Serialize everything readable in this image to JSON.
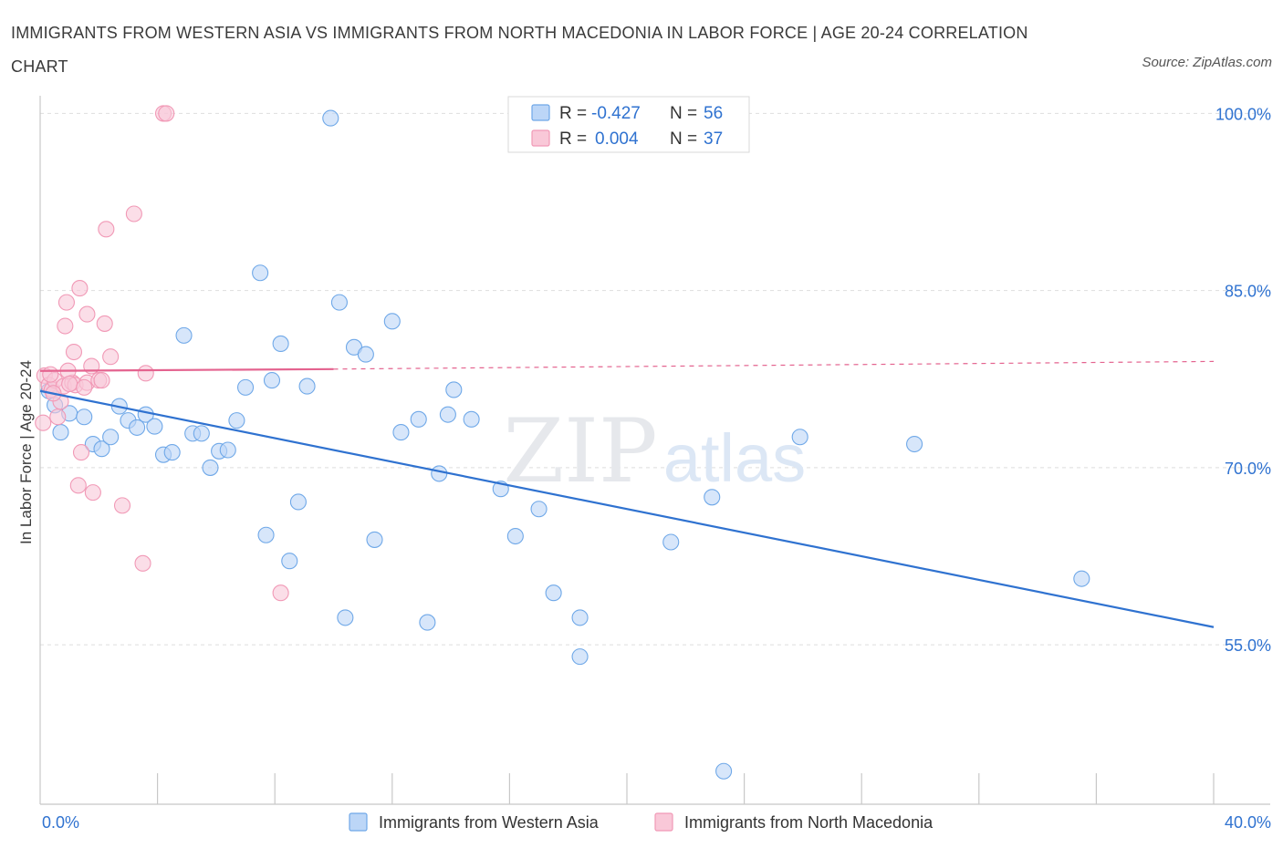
{
  "title": "IMMIGRANTS FROM WESTERN ASIA VS IMMIGRANTS FROM NORTH MACEDONIA IN LABOR FORCE | AGE 20-24 CORRELATION CHART",
  "source": "Source: ZipAtlas.com",
  "watermark": {
    "zip": "ZIP",
    "atlas": "atlas"
  },
  "chart_data": {
    "type": "scatter",
    "title": "IMMIGRANTS FROM WESTERN ASIA VS IMMIGRANTS FROM NORTH MACEDONIA IN LABOR FORCE | AGE 20-24 CORRELATION CHART",
    "xlabel": "",
    "ylabel": "In Labor Force | Age 20-24",
    "xlim": [
      0,
      40
    ],
    "ylim": [
      41.5,
      101.5
    ],
    "x_tick_labels": [
      "0.0%",
      "40.0%"
    ],
    "y_ticks": [
      55,
      70,
      85,
      100
    ],
    "y_tick_labels": [
      "55.0%",
      "70.0%",
      "85.0%",
      "100.0%"
    ],
    "grid": true,
    "legend_position": "bottom",
    "stats": [
      {
        "r_label": "R =",
        "r_value": "-0.427",
        "n_label": "N =",
        "n_value": "56"
      },
      {
        "r_label": "R =",
        "r_value": "0.004",
        "n_label": "N =",
        "n_value": "37"
      }
    ],
    "series": [
      {
        "name": "Immigrants from Western Asia",
        "color": "#6fa8e8",
        "line_color": "#2f72d0",
        "trend": {
          "x": [
            0,
            40
          ],
          "y": [
            76.5,
            56.5
          ],
          "dashed_from": null
        },
        "points": [
          [
            0.3,
            76.5
          ],
          [
            0.5,
            75.3
          ],
          [
            0.7,
            73.0
          ],
          [
            1.0,
            74.6
          ],
          [
            1.5,
            74.3
          ],
          [
            1.8,
            72.0
          ],
          [
            2.1,
            71.6
          ],
          [
            2.4,
            72.6
          ],
          [
            2.7,
            75.2
          ],
          [
            3.0,
            74.0
          ],
          [
            3.3,
            73.4
          ],
          [
            3.6,
            74.5
          ],
          [
            3.9,
            73.5
          ],
          [
            4.2,
            71.1
          ],
          [
            4.5,
            71.3
          ],
          [
            4.9,
            81.2
          ],
          [
            5.2,
            72.9
          ],
          [
            5.5,
            72.9
          ],
          [
            5.8,
            70.0
          ],
          [
            6.1,
            71.4
          ],
          [
            6.4,
            71.5
          ],
          [
            6.7,
            74.0
          ],
          [
            7.0,
            76.8
          ],
          [
            7.5,
            86.5
          ],
          [
            7.7,
            64.3
          ],
          [
            7.9,
            77.4
          ],
          [
            8.2,
            80.5
          ],
          [
            8.5,
            62.1
          ],
          [
            8.8,
            67.1
          ],
          [
            9.1,
            76.9
          ],
          [
            9.9,
            99.6
          ],
          [
            10.2,
            84.0
          ],
          [
            10.4,
            57.3
          ],
          [
            10.7,
            80.2
          ],
          [
            11.1,
            79.6
          ],
          [
            11.4,
            63.9
          ],
          [
            12.0,
            82.4
          ],
          [
            12.3,
            73.0
          ],
          [
            12.9,
            74.1
          ],
          [
            13.2,
            56.9
          ],
          [
            13.6,
            69.5
          ],
          [
            13.9,
            74.5
          ],
          [
            14.1,
            76.6
          ],
          [
            14.7,
            74.1
          ],
          [
            15.7,
            68.2
          ],
          [
            16.2,
            64.2
          ],
          [
            17.0,
            66.5
          ],
          [
            17.5,
            59.4
          ],
          [
            18.4,
            57.3
          ],
          [
            18.4,
            54.0
          ],
          [
            21.5,
            63.7
          ],
          [
            22.9,
            67.5
          ],
          [
            23.3,
            44.3
          ],
          [
            25.9,
            72.6
          ],
          [
            29.8,
            72.0
          ],
          [
            35.5,
            60.6
          ]
        ]
      },
      {
        "name": "Immigrants from North Macedonia",
        "color": "#f199b6",
        "line_color": "#e4638f",
        "trend": {
          "x": [
            0,
            10.0,
            40
          ],
          "y": [
            78.2,
            78.35,
            79.0
          ],
          "dashed_from": 10.0
        },
        "points": [
          [
            0.1,
            73.8
          ],
          [
            0.15,
            77.8
          ],
          [
            0.3,
            77.0
          ],
          [
            0.4,
            76.6
          ],
          [
            0.5,
            77.4
          ],
          [
            0.6,
            74.3
          ],
          [
            0.7,
            75.6
          ],
          [
            0.8,
            76.9
          ],
          [
            0.85,
            82.0
          ],
          [
            0.9,
            84.0
          ],
          [
            1.1,
            77.2
          ],
          [
            1.15,
            79.8
          ],
          [
            1.2,
            77.0
          ],
          [
            1.3,
            68.5
          ],
          [
            1.35,
            85.2
          ],
          [
            1.4,
            71.3
          ],
          [
            1.6,
            77.2
          ],
          [
            1.6,
            83.0
          ],
          [
            1.75,
            78.6
          ],
          [
            1.8,
            67.9
          ],
          [
            2.0,
            77.4
          ],
          [
            2.1,
            77.4
          ],
          [
            2.2,
            82.2
          ],
          [
            2.25,
            90.2
          ],
          [
            2.4,
            79.4
          ],
          [
            2.8,
            66.8
          ],
          [
            3.2,
            91.5
          ],
          [
            3.5,
            61.9
          ],
          [
            3.6,
            78.0
          ],
          [
            4.2,
            100.0
          ],
          [
            4.3,
            100.0
          ],
          [
            8.2,
            59.4
          ],
          [
            0.35,
            77.9
          ],
          [
            0.95,
            78.2
          ],
          [
            1.0,
            77.1
          ],
          [
            0.45,
            76.3
          ],
          [
            1.5,
            76.8
          ]
        ]
      }
    ]
  }
}
